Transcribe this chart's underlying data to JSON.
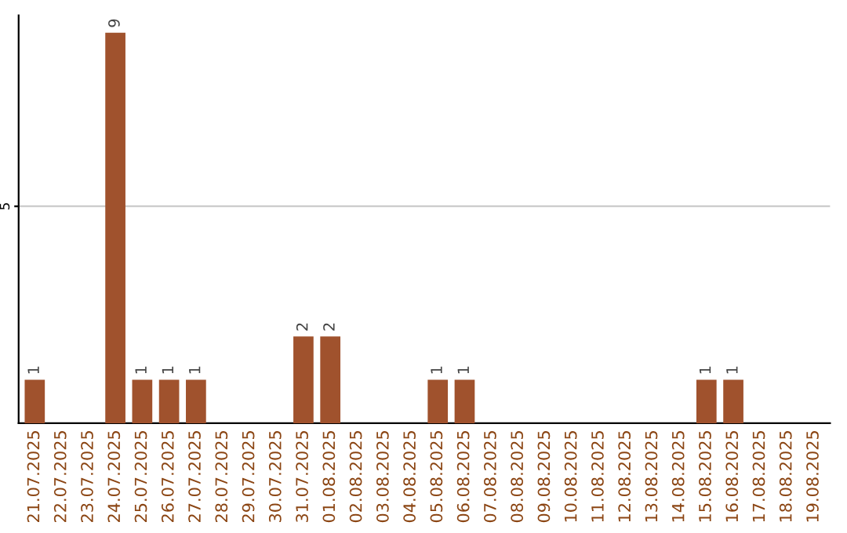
{
  "chart_data": {
    "type": "bar",
    "categories": [
      "21.07.2025",
      "22.07.2025",
      "23.07.2025",
      "24.07.2025",
      "25.07.2025",
      "26.07.2025",
      "27.07.2025",
      "28.07.2025",
      "29.07.2025",
      "30.07.2025",
      "31.07.2025",
      "01.08.2025",
      "02.08.2025",
      "03.08.2025",
      "04.08.2025",
      "05.08.2025",
      "06.08.2025",
      "07.08.2025",
      "08.08.2025",
      "09.08.2025",
      "10.08.2025",
      "11.08.2025",
      "12.08.2025",
      "13.08.2025",
      "14.08.2025",
      "15.08.2025",
      "16.08.2025",
      "17.08.2025",
      "18.08.2025",
      "19.08.2025"
    ],
    "values": [
      1,
      0,
      0,
      9,
      1,
      1,
      1,
      0,
      0,
      0,
      2,
      2,
      0,
      0,
      0,
      1,
      1,
      0,
      0,
      0,
      0,
      0,
      0,
      0,
      0,
      1,
      1,
      0,
      0,
      0
    ],
    "color": "#a0522d",
    "value_labels": [
      "1",
      null,
      null,
      "9",
      "1",
      "1",
      "1",
      null,
      null,
      null,
      "2",
      "2",
      null,
      null,
      null,
      "1",
      "1",
      null,
      null,
      null,
      null,
      null,
      null,
      null,
      null,
      "1",
      "1",
      null,
      null,
      null
    ],
    "ylim": [
      0,
      9.4
    ],
    "yticks": [
      5
    ],
    "grid": "y"
  }
}
